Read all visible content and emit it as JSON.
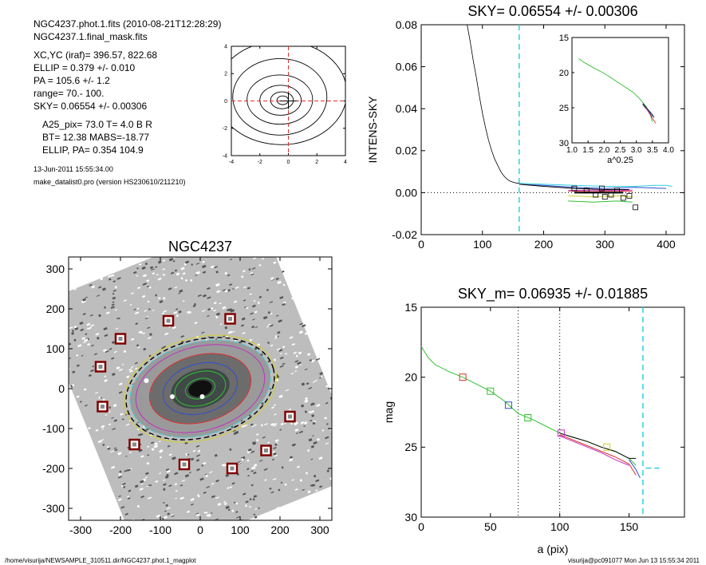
{
  "info": {
    "line1": "NGC4237.phot.1.fits  (2010-08-21T12:28:29)",
    "line2": "NGC4237.1.final_mask.fits",
    "line3": "XC,YC (iraf)=   396.57, 822.68",
    "line4": "ELLIP = 0.379 +/- 0.010",
    "line5": "PA    = 105.6 +/-   1.2",
    "line6": "range=   70.-  100.",
    "line7": "SKY= 0.06554 +/- 0.00306",
    "line8": "A25_pix= 73.0   T= 4.0  B R",
    "line9": "BT=  12.38   MABS=-18.77",
    "line10": "ELLIP, PA= 0.354  104.9",
    "date": "13-Jun-2011 15:55:34.00",
    "program": "make_datalist0.pro (version HS230610/211210)"
  },
  "footer": {
    "left": "/home/visurija/NEWSAMPLE_310511.dir/NGC4237.phot.1_magplot",
    "right": "visurija@pc091077  Mon Jun 13 15:55:34 2011"
  },
  "colors": {
    "black": "#000000",
    "red": "#e03030",
    "green": "#30c030",
    "blue": "#3050d0",
    "cyan": "#30d0e0",
    "magenta": "#c030c0",
    "yellow": "#d0d030",
    "darkred": "#800000"
  },
  "chart_data": [
    {
      "id": "contour",
      "type": "contour",
      "xlim": [
        -4,
        4
      ],
      "ylim": [
        -4,
        4
      ],
      "xticks": [
        "-4",
        "-2",
        "0",
        "2",
        "4"
      ],
      "yticks": [
        "-4",
        "-2",
        "0",
        "2",
        "4"
      ],
      "center": [
        0,
        0
      ],
      "contours": [
        {
          "a": 0.4,
          "b": 0.32,
          "cx": -0.4,
          "cy": 0.05
        },
        {
          "a": 0.8,
          "b": 0.62,
          "cx": -0.45,
          "cy": 0.05
        },
        {
          "a": 1.45,
          "b": 1.1,
          "cx": -0.55,
          "cy": 0.05
        },
        {
          "a": 2.3,
          "b": 1.8,
          "cx": -0.6,
          "cy": 0.1
        },
        {
          "a": 3.3,
          "b": 2.8,
          "cx": -0.6,
          "cy": 0.3
        },
        {
          "a": 4.6,
          "b": 3.8,
          "cx": -0.5,
          "cy": 0.6
        }
      ]
    },
    {
      "id": "sky",
      "type": "line",
      "title": "SKY= 0.06554 +/- 0.00306",
      "ylabel": "INTENS-SKY",
      "xlim": [
        0,
        430
      ],
      "ylim": [
        -0.02,
        0.08
      ],
      "xticks": [
        "0",
        "100",
        "200",
        "300",
        "400"
      ],
      "yticks": [
        "-0.02",
        "0.00",
        "0.02",
        "0.04",
        "0.06",
        "0.08"
      ],
      "sky_level": 0.0,
      "vline": 160,
      "profile": [
        [
          75,
          0.08
        ],
        [
          80,
          0.072
        ],
        [
          85,
          0.063
        ],
        [
          90,
          0.055
        ],
        [
          95,
          0.046
        ],
        [
          100,
          0.038
        ],
        [
          105,
          0.031
        ],
        [
          110,
          0.025
        ],
        [
          115,
          0.02
        ],
        [
          120,
          0.016
        ],
        [
          125,
          0.013
        ],
        [
          130,
          0.01
        ],
        [
          135,
          0.008
        ],
        [
          140,
          0.0065
        ],
        [
          145,
          0.0055
        ],
        [
          150,
          0.005
        ],
        [
          155,
          0.0046
        ],
        [
          160,
          0.0044
        ]
      ],
      "series": [
        {
          "color": "cyan",
          "points": [
            [
              160,
              0.0045
            ],
            [
              200,
              0.004
            ],
            [
              250,
              0.0035
            ],
            [
              300,
              0.003
            ],
            [
              350,
              0.003
            ],
            [
              380,
              0.0035
            ],
            [
              400,
              0.0035
            ],
            [
              410,
              0.003
            ]
          ]
        },
        {
          "color": "blue",
          "points": [
            [
              160,
              0.004
            ],
            [
              200,
              0.0035
            ],
            [
              250,
              0.0025
            ],
            [
              300,
              0.002
            ],
            [
              350,
              0.0025
            ],
            [
              400,
              0.002
            ]
          ]
        },
        {
          "color": "black",
          "points": [
            [
              160,
              0.004
            ],
            [
              200,
              0.003
            ],
            [
              250,
              0.002
            ],
            [
              300,
              0.0015
            ],
            [
              340,
              0.0015
            ]
          ]
        },
        {
          "color": "red",
          "points": [
            [
              240,
              0.0008
            ],
            [
              280,
              0.0005
            ],
            [
              320,
              0.0008
            ],
            [
              345,
              0.0005
            ]
          ]
        },
        {
          "color": "magenta",
          "points": [
            [
              240,
              0.001
            ],
            [
              280,
              0.0012
            ],
            [
              320,
              0.001
            ],
            [
              345,
              0.0012
            ]
          ]
        },
        {
          "color": "green",
          "points": [
            [
              240,
              -0.004
            ],
            [
              280,
              -0.0045
            ],
            [
              320,
              -0.004
            ],
            [
              345,
              -0.0045
            ]
          ]
        },
        {
          "color": "yellow",
          "points": [
            [
              240,
              -0.0015
            ],
            [
              280,
              -0.002
            ],
            [
              320,
              -0.0015
            ],
            [
              345,
              -0.002
            ]
          ]
        }
      ],
      "sky_bar": [
        [
          250,
          0.0
        ],
        [
          330,
          0.0
        ]
      ],
      "squares": [
        [
          250,
          0.002
        ],
        [
          270,
          0.001
        ],
        [
          285,
          -0.001
        ],
        [
          295,
          0.002
        ],
        [
          300,
          -0.002
        ],
        [
          310,
          -0.001
        ],
        [
          320,
          0.001
        ],
        [
          330,
          -0.0025
        ],
        [
          340,
          -0.0015
        ],
        [
          350,
          -0.007
        ]
      ],
      "inset": {
        "xlabel": "a^0.25",
        "xlim": [
          1.0,
          4.0
        ],
        "ylim": [
          15,
          30
        ],
        "xticks": [
          "1.0",
          "1.5",
          "2.0",
          "2.5",
          "3.0",
          "3.5",
          "4.0"
        ],
        "yticks": [
          "15",
          "20",
          "25",
          "30"
        ],
        "series": [
          {
            "color": "green",
            "points": [
              [
                1.2,
                18.0
              ],
              [
                1.4,
                18.6
              ],
              [
                1.7,
                19.4
              ],
              [
                2.0,
                20.1
              ],
              [
                2.3,
                21.0
              ],
              [
                2.6,
                21.9
              ],
              [
                2.9,
                22.8
              ],
              [
                3.1,
                23.7
              ],
              [
                3.3,
                24.8
              ],
              [
                3.45,
                26.2
              ],
              [
                3.5,
                27.0
              ]
            ]
          },
          {
            "color": "red",
            "points": [
              [
                3.2,
                24.6
              ],
              [
                3.35,
                25.4
              ],
              [
                3.5,
                26.5
              ],
              [
                3.6,
                27.2
              ]
            ]
          },
          {
            "color": "black",
            "points": [
              [
                3.2,
                24.4
              ],
              [
                3.35,
                25.2
              ],
              [
                3.5,
                26.0
              ],
              [
                3.55,
                26.4
              ]
            ]
          },
          {
            "color": "blue",
            "points": [
              [
                3.2,
                24.5
              ],
              [
                3.35,
                25.3
              ],
              [
                3.5,
                26.3
              ]
            ]
          }
        ]
      }
    },
    {
      "id": "image",
      "type": "image",
      "title": "NGC4237",
      "xlim": [
        -330,
        330
      ],
      "ylim": [
        -330,
        330
      ],
      "xticks": [
        "-300",
        "-200",
        "-100",
        "0",
        "100",
        "200",
        "300"
      ],
      "yticks": [
        "-300",
        "-200",
        "-100",
        "0",
        "100",
        "200",
        "300"
      ],
      "galaxy": {
        "cx": 0,
        "cy": 0,
        "pa_deg": 105.6
      },
      "ellipses": [
        {
          "a": 190,
          "b": 122,
          "color": "black",
          "dash": true
        },
        {
          "a": 180,
          "b": 116,
          "color": "cyan",
          "dash": true
        },
        {
          "a": 195,
          "b": 128,
          "color": "yellow",
          "dash": false
        },
        {
          "a": 165,
          "b": 105,
          "color": "magenta",
          "dash": false
        },
        {
          "a": 130,
          "b": 84,
          "color": "red",
          "dash": false
        },
        {
          "a": 95,
          "b": 62,
          "color": "blue",
          "dash": false
        },
        {
          "a": 65,
          "b": 42,
          "color": "green",
          "dash": false
        },
        {
          "a": 38,
          "b": 25,
          "color": "green",
          "dash": false
        }
      ],
      "boxes": [
        [
          -80,
          170
        ],
        [
          75,
          175
        ],
        [
          -200,
          125
        ],
        [
          -250,
          55
        ],
        [
          -245,
          -45
        ],
        [
          -165,
          -140
        ],
        [
          -40,
          -190
        ],
        [
          80,
          -200
        ],
        [
          165,
          -155
        ],
        [
          225,
          -70
        ]
      ]
    },
    {
      "id": "mag",
      "type": "line",
      "title": "SKY_m=  0.06935 +/- 0.01885",
      "xlabel": "a (pix)",
      "ylabel": "mag",
      "xlim": [
        0,
        190
      ],
      "ylim": [
        15,
        30
      ],
      "xticks": [
        "0",
        "50",
        "100",
        "150"
      ],
      "yticks": [
        "15",
        "20",
        "25",
        "30"
      ],
      "vlines_dotted": [
        70,
        100
      ],
      "vline_dashed": 160,
      "sky_mark": [
        [
          162,
          26.5
        ],
        [
          172,
          26.5
        ]
      ],
      "series": [
        {
          "color": "green",
          "points": [
            [
              0,
              17.8
            ],
            [
              5,
              18.6
            ],
            [
              10,
              19.1
            ],
            [
              20,
              19.6
            ],
            [
              30,
              20.0
            ],
            [
              40,
              20.5
            ],
            [
              50,
              21.0
            ],
            [
              60,
              21.7
            ],
            [
              70,
              22.6
            ],
            [
              80,
              23.0
            ],
            [
              90,
              23.5
            ],
            [
              100,
              24.0
            ],
            [
              110,
              24.3
            ],
            [
              120,
              24.6
            ],
            [
              130,
              25.0
            ],
            [
              140,
              25.3
            ],
            [
              150,
              25.8
            ],
            [
              155,
              26.3
            ]
          ]
        },
        {
          "color": "red",
          "points": [
            [
              100,
              24.1
            ],
            [
              110,
              24.5
            ],
            [
              120,
              24.9
            ],
            [
              130,
              25.3
            ],
            [
              140,
              25.7
            ],
            [
              150,
              26.2
            ],
            [
              155,
              27.0
            ]
          ]
        },
        {
          "color": "black",
          "points": [
            [
              100,
              24.0
            ],
            [
              110,
              24.3
            ],
            [
              120,
              24.6
            ],
            [
              130,
              25.0
            ],
            [
              140,
              25.3
            ],
            [
              150,
              25.8
            ],
            [
              155,
              25.8
            ]
          ]
        },
        {
          "color": "magenta",
          "points": [
            [
              100,
              24.2
            ],
            [
              110,
              24.6
            ],
            [
              120,
              25.0
            ],
            [
              130,
              25.4
            ],
            [
              140,
              25.9
            ],
            [
              150,
              26.3
            ]
          ]
        },
        {
          "color": "blue",
          "points": [
            [
              150,
              25.9
            ],
            [
              155,
              26.6
            ],
            [
              158,
              27.2
            ]
          ]
        }
      ],
      "squares": [
        {
          "x": 30,
          "y": 20.0,
          "color": "red"
        },
        {
          "x": 50,
          "y": 21.0,
          "color": "green"
        },
        {
          "x": 63,
          "y": 22.0,
          "color": "blue"
        },
        {
          "x": 77,
          "y": 22.9,
          "color": "green"
        },
        {
          "x": 101,
          "y": 24.0,
          "color": "magenta"
        },
        {
          "x": 134,
          "y": 25.0,
          "color": "yellow"
        }
      ]
    }
  ]
}
